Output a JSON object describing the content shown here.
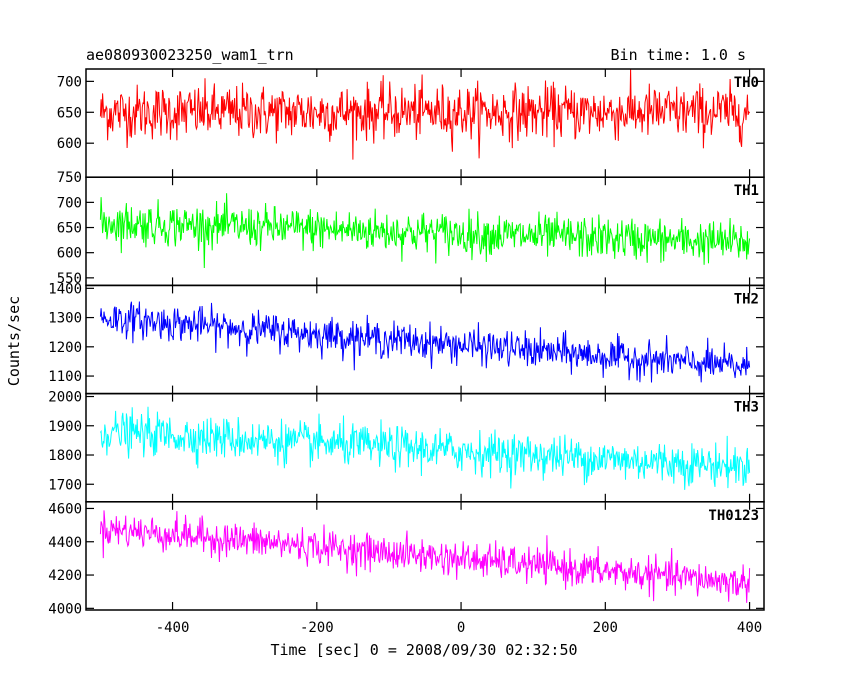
{
  "header": {
    "title": "ae080930023250_wam1_trn",
    "bin_time": "Bin time: 1.0 s"
  },
  "chart_data": {
    "type": "line",
    "xlabel": "Time [sec] 0 = 2008/09/30 02:32:50",
    "ylabel": "Counts/sec",
    "xlim": [
      -520,
      420
    ],
    "x_ticks": [
      -400,
      -200,
      0,
      200,
      400
    ],
    "x_range": [
      -500,
      400
    ],
    "bin_time": 1.0,
    "grid": false,
    "panels": [
      {
        "name": "TH0",
        "color": "#ff0000",
        "ylim": [
          545,
          720
        ],
        "y_ticks": [
          600,
          650,
          700
        ],
        "trend": [
          650,
          650
        ],
        "noise": 40
      },
      {
        "name": "TH1",
        "color": "#00ff00",
        "ylim": [
          535,
          750
        ],
        "y_ticks": [
          550,
          600,
          650,
          700,
          750
        ],
        "trend": [
          660,
          620
        ],
        "noise": 38
      },
      {
        "name": "TH2",
        "color": "#0000ff",
        "ylim": [
          1040,
          1410
        ],
        "y_ticks": [
          1100,
          1200,
          1300,
          1400
        ],
        "trend": [
          1300,
          1130
        ],
        "noise": 55
      },
      {
        "name": "TH3",
        "color": "#00ffff",
        "ylim": [
          1640,
          2010
        ],
        "y_ticks": [
          1700,
          1800,
          1900,
          2000
        ],
        "trend": [
          1880,
          1760
        ],
        "noise": 65
      },
      {
        "name": "TH0123",
        "color": "#ff00ff",
        "ylim": [
          3990,
          4640
        ],
        "y_ticks": [
          4000,
          4200,
          4400,
          4600
        ],
        "trend": [
          4480,
          4150
        ],
        "noise": 95
      }
    ]
  }
}
